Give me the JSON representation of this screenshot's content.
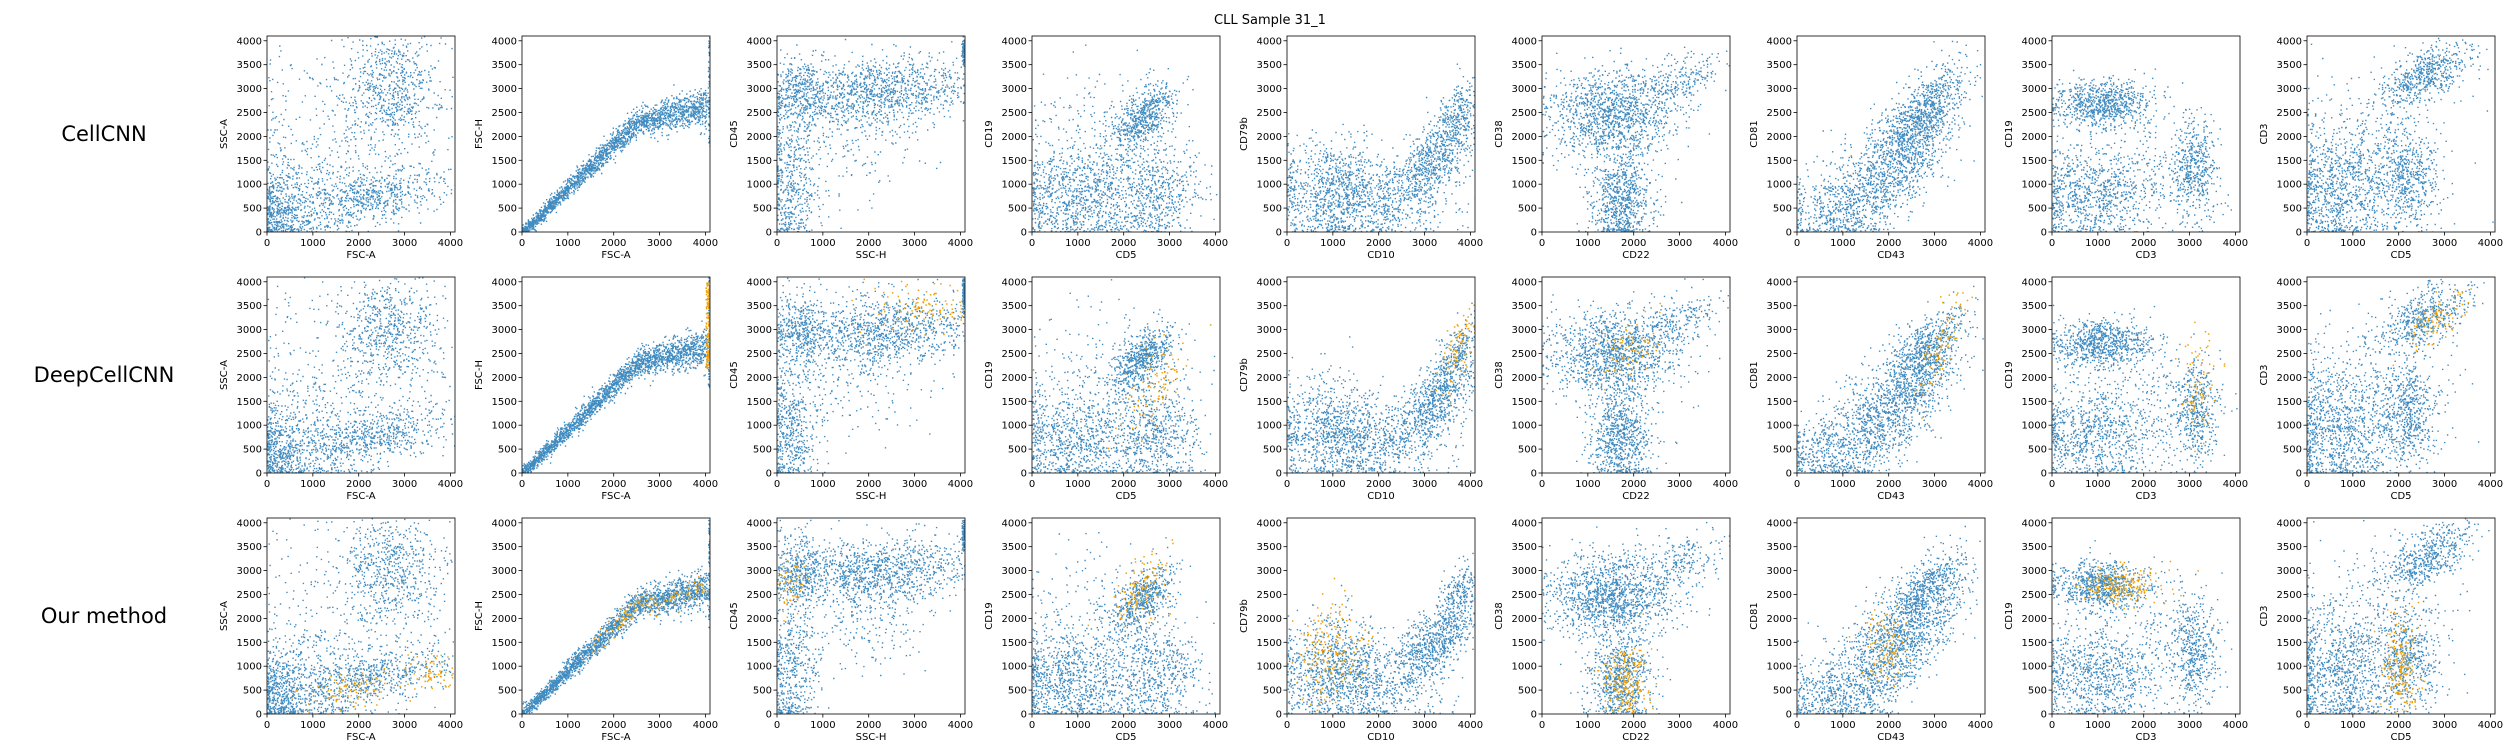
{
  "figure": {
    "title": "CLL Sample 31_1",
    "row_labels": [
      "CellCNN",
      "DeepCellCNN",
      "Our method"
    ],
    "axis_ticks": [
      0,
      500,
      1000,
      1500,
      2000,
      2500,
      3000,
      3500,
      4000
    ],
    "x_tick_labels": [
      0,
      1000,
      2000,
      3000,
      4000
    ],
    "colors": {
      "population": "#1f77b4",
      "selected": "#f0a30a"
    }
  },
  "chart_data": [
    {
      "type": "scatter",
      "xlabel": "FSC-A",
      "ylabel": "SSC-A",
      "xlim": [
        0,
        4100
      ],
      "ylim": [
        0,
        4100
      ]
    },
    {
      "type": "scatter",
      "xlabel": "FSC-A",
      "ylabel": "FSC-H",
      "xlim": [
        0,
        4100
      ],
      "ylim": [
        0,
        4100
      ]
    },
    {
      "type": "scatter",
      "xlabel": "SSC-H",
      "ylabel": "CD45",
      "xlim": [
        0,
        4100
      ],
      "ylim": [
        0,
        4100
      ]
    },
    {
      "type": "scatter",
      "xlabel": "CD5",
      "ylabel": "CD19",
      "xlim": [
        0,
        4100
      ],
      "ylim": [
        0,
        4100
      ]
    },
    {
      "type": "scatter",
      "xlabel": "CD10",
      "ylabel": "CD79b",
      "xlim": [
        0,
        4100
      ],
      "ylim": [
        0,
        4100
      ]
    },
    {
      "type": "scatter",
      "xlabel": "CD22",
      "ylabel": "CD38",
      "xlim": [
        0,
        4100
      ],
      "ylim": [
        0,
        4100
      ]
    },
    {
      "type": "scatter",
      "xlabel": "CD43",
      "ylabel": "CD81",
      "xlim": [
        0,
        4100
      ],
      "ylim": [
        0,
        4100
      ]
    },
    {
      "type": "scatter",
      "xlabel": "CD3",
      "ylabel": "CD19",
      "xlim": [
        0,
        4100
      ],
      "ylim": [
        0,
        4100
      ]
    },
    {
      "type": "scatter",
      "xlabel": "CD5",
      "ylabel": "CD3",
      "xlim": [
        0,
        4100
      ],
      "ylim": [
        0,
        4100
      ]
    }
  ]
}
